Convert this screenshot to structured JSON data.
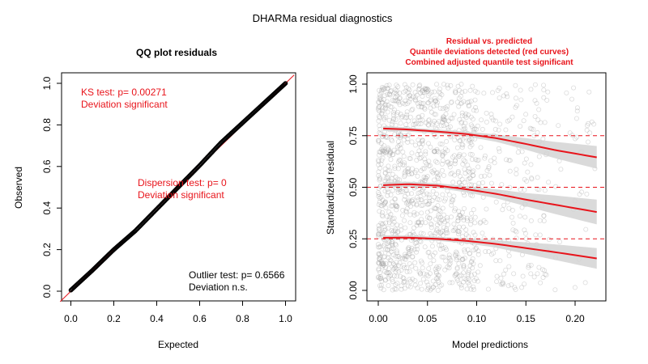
{
  "main_title": "DHARMa residual diagnostics",
  "colors": {
    "red": "#e8141b",
    "band": "#d3d3d3",
    "points": "#9a9a9a",
    "axis": "#000000"
  },
  "chart_data": [
    {
      "type": "scatter",
      "title": "QQ plot residuals",
      "xlabel": "Expected",
      "ylabel": "Observed",
      "xlim": [
        0,
        1
      ],
      "ylim": [
        0,
        1
      ],
      "xticks": [
        0.0,
        0.2,
        0.4,
        0.6,
        0.8,
        1.0
      ],
      "xtick_labels": [
        "0.0",
        "0.2",
        "0.4",
        "0.6",
        "0.8",
        "1.0"
      ],
      "yticks": [
        0.0,
        0.2,
        0.4,
        0.6,
        0.8,
        1.0
      ],
      "ytick_labels": [
        "0.0",
        "0.2",
        "0.4",
        "0.6",
        "0.8",
        "1.0"
      ],
      "reference_line": {
        "x": [
          0,
          1
        ],
        "y": [
          0,
          1
        ],
        "label": "1:1 line"
      },
      "qq_points": {
        "x": [
          0.0,
          0.1,
          0.2,
          0.3,
          0.4,
          0.5,
          0.6,
          0.7,
          0.8,
          0.9,
          1.0
        ],
        "y": [
          0.005,
          0.1,
          0.2,
          0.29,
          0.395,
          0.5,
          0.605,
          0.715,
          0.81,
          0.905,
          1.0
        ]
      },
      "annotations": {
        "ks": [
          "KS test: p= 0.00271",
          "Deviation  significant"
        ],
        "dispersion": [
          "Dispersion test: p= 0",
          "Deviation  significant"
        ],
        "outlier": [
          "Outlier test: p= 0.6566",
          "Deviation  n.s."
        ]
      }
    },
    {
      "type": "scatter",
      "title_lines": [
        "Residual vs. predicted",
        "Quantile deviations detected (red curves)",
        "Combined adjusted quantile test significant"
      ],
      "xlabel": "Model predictions",
      "ylabel": "Standardized residual",
      "xlim": [
        0,
        0.225
      ],
      "ylim": [
        0,
        1
      ],
      "xticks": [
        0.0,
        0.05,
        0.1,
        0.15,
        0.2
      ],
      "xtick_labels": [
        "0.00",
        "0.05",
        "0.10",
        "0.15",
        "0.20"
      ],
      "yticks": [
        0.0,
        0.25,
        0.5,
        0.75,
        1.0
      ],
      "ytick_labels": [
        "0.00",
        "0.25",
        "0.50",
        "0.75",
        "1.00"
      ],
      "reference_lines": [
        0.25,
        0.5,
        0.75
      ],
      "scatter": {
        "n_points": 1400,
        "x_range": [
          0.0,
          0.225
        ],
        "y_range": [
          0,
          1
        ]
      },
      "quantile_curves": [
        {
          "name": "0.25 quantile",
          "x": [
            0.005,
            0.03,
            0.06,
            0.09,
            0.12,
            0.15,
            0.18,
            0.222
          ],
          "y": [
            0.255,
            0.256,
            0.25,
            0.24,
            0.225,
            0.205,
            0.185,
            0.155
          ],
          "band_halfwidth": [
            0.012,
            0.01,
            0.01,
            0.012,
            0.018,
            0.028,
            0.038,
            0.05
          ]
        },
        {
          "name": "0.5 quantile",
          "x": [
            0.005,
            0.03,
            0.06,
            0.09,
            0.12,
            0.15,
            0.18,
            0.222
          ],
          "y": [
            0.51,
            0.515,
            0.508,
            0.49,
            0.468,
            0.44,
            0.415,
            0.38
          ],
          "band_halfwidth": [
            0.015,
            0.012,
            0.012,
            0.015,
            0.022,
            0.032,
            0.045,
            0.06
          ]
        },
        {
          "name": "0.75 quantile",
          "x": [
            0.005,
            0.03,
            0.06,
            0.09,
            0.12,
            0.15,
            0.18,
            0.222
          ],
          "y": [
            0.785,
            0.78,
            0.77,
            0.758,
            0.738,
            0.71,
            0.68,
            0.645
          ],
          "band_halfwidth": [
            0.012,
            0.01,
            0.01,
            0.012,
            0.018,
            0.028,
            0.04,
            0.055
          ]
        }
      ]
    }
  ]
}
